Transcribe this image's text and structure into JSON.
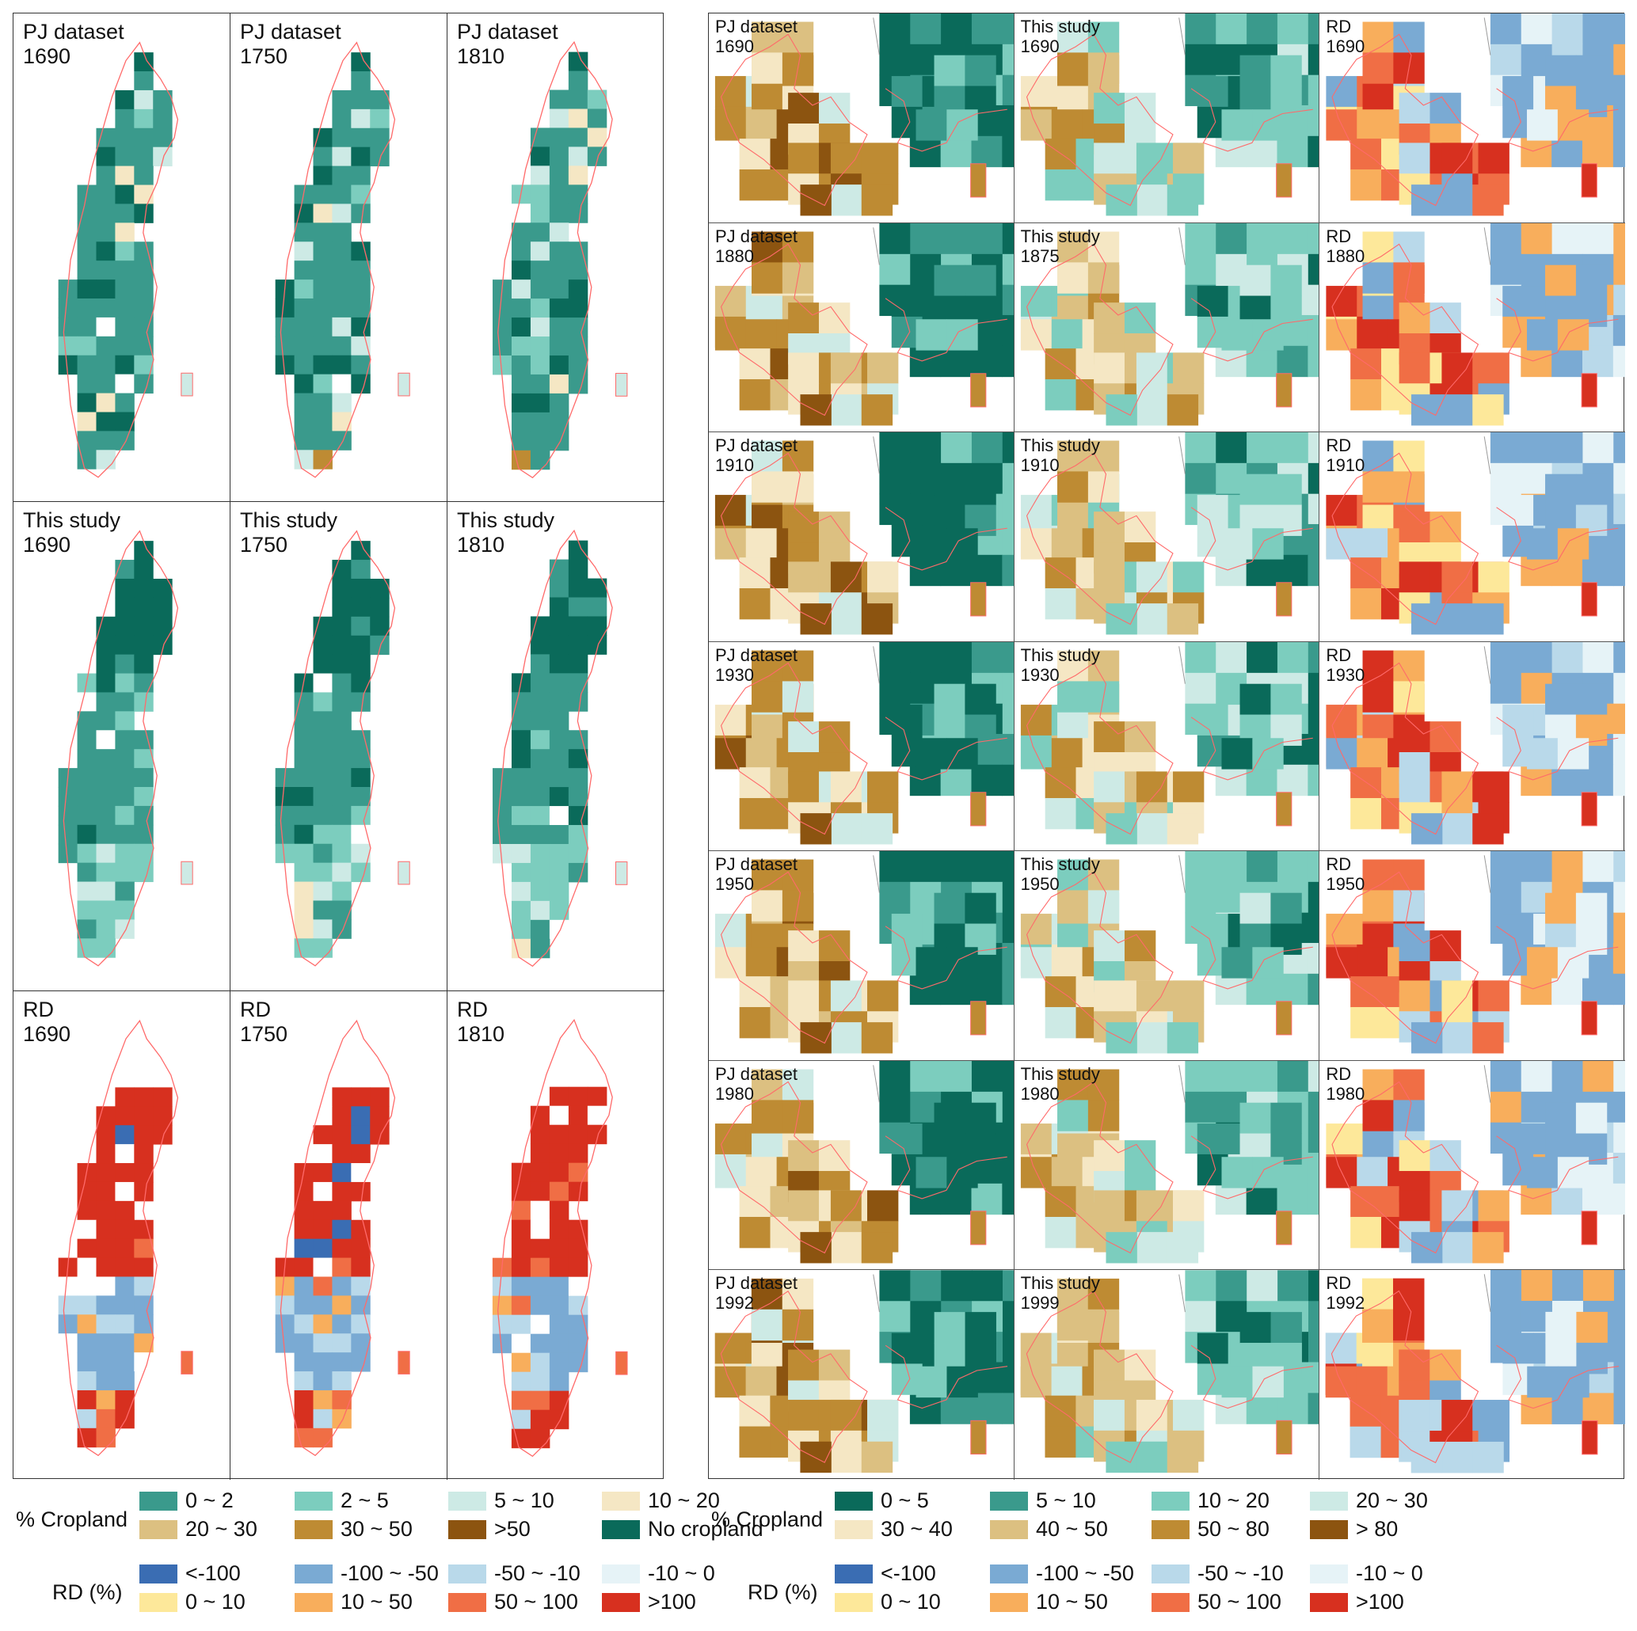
{
  "left_panels": {
    "rows": [
      {
        "dataset": "PJ dataset",
        "years": [
          "1690",
          "1750",
          "1810"
        ],
        "kind": "pj"
      },
      {
        "dataset": "This study",
        "years": [
          "1690",
          "1750",
          "1810"
        ],
        "kind": "ts"
      },
      {
        "dataset": "RD",
        "years": [
          "1690",
          "1750",
          "1810"
        ],
        "kind": "rd"
      }
    ]
  },
  "right_panels": {
    "rows": [
      {
        "cols": [
          {
            "dataset": "PJ dataset",
            "year": "1690"
          },
          {
            "dataset": "This study",
            "year": "1690"
          },
          {
            "dataset": "RD",
            "year": "1690"
          }
        ]
      },
      {
        "cols": [
          {
            "dataset": "PJ dataset",
            "year": "1880"
          },
          {
            "dataset": "This study",
            "year": "1875"
          },
          {
            "dataset": "RD",
            "year": "1880"
          }
        ]
      },
      {
        "cols": [
          {
            "dataset": "PJ dataset",
            "year": "1910"
          },
          {
            "dataset": "This study",
            "year": "1910"
          },
          {
            "dataset": "RD",
            "year": "1910"
          }
        ]
      },
      {
        "cols": [
          {
            "dataset": "PJ dataset",
            "year": "1930"
          },
          {
            "dataset": "This study",
            "year": "1930"
          },
          {
            "dataset": "RD",
            "year": "1930"
          }
        ]
      },
      {
        "cols": [
          {
            "dataset": "PJ dataset",
            "year": "1950"
          },
          {
            "dataset": "This study",
            "year": "1950"
          },
          {
            "dataset": "RD",
            "year": "1950"
          }
        ]
      },
      {
        "cols": [
          {
            "dataset": "PJ dataset",
            "year": "1980"
          },
          {
            "dataset": "This study",
            "year": "1980"
          },
          {
            "dataset": "RD",
            "year": "1980"
          }
        ]
      },
      {
        "cols": [
          {
            "dataset": "PJ dataset",
            "year": "1992"
          },
          {
            "dataset": "This study",
            "year": "1999"
          },
          {
            "dataset": "RD",
            "year": "1992"
          }
        ]
      }
    ]
  },
  "legend_left": {
    "cropland_title": "% Cropland",
    "cropland": [
      {
        "label": "0 ~ 2",
        "color": "#3a9a8c"
      },
      {
        "label": "2 ~ 5",
        "color": "#7ccdbe"
      },
      {
        "label": "5 ~ 10",
        "color": "#cdeae5"
      },
      {
        "label": "10 ~ 20",
        "color": "#f5e7c4"
      },
      {
        "label": "20 ~ 30",
        "color": "#dcc081"
      },
      {
        "label": "30 ~ 50",
        "color": "#be8b33"
      },
      {
        "label": ">50",
        "color": "#8c5410"
      },
      {
        "label": "No cropland",
        "color": "#0a6a5a"
      }
    ],
    "rd_title": "RD (%)",
    "rd": [
      {
        "label": "<-100",
        "color": "#3a6db3"
      },
      {
        "label": "-100 ~ -50",
        "color": "#7aaad3"
      },
      {
        "label": "-50 ~ -10",
        "color": "#b9d9ea"
      },
      {
        "label": "-10 ~ 0",
        "color": "#e6f3f7"
      },
      {
        "label": "0 ~ 10",
        "color": "#fde89a"
      },
      {
        "label": "10 ~ 50",
        "color": "#f8ae5c"
      },
      {
        "label": "50 ~ 100",
        "color": "#f06e45"
      },
      {
        "label": ">100",
        "color": "#d7301f"
      }
    ]
  },
  "legend_right": {
    "cropland_title": "% Cropland",
    "cropland": [
      {
        "label": "0 ~ 5",
        "color": "#0a6a5a"
      },
      {
        "label": "5 ~ 10",
        "color": "#3a9a8c"
      },
      {
        "label": "10 ~ 20",
        "color": "#7ccdbe"
      },
      {
        "label": "20 ~ 30",
        "color": "#cdeae5"
      },
      {
        "label": "30 ~ 40",
        "color": "#f5e7c4"
      },
      {
        "label": "40 ~ 50",
        "color": "#dcc081"
      },
      {
        "label": "50 ~ 80",
        "color": "#be8b33"
      },
      {
        "label": "> 80",
        "color": "#8c5410"
      }
    ],
    "rd_title": "RD (%)",
    "rd": [
      {
        "label": "<-100",
        "color": "#3a6db3"
      },
      {
        "label": "-100 ~ -50",
        "color": "#7aaad3"
      },
      {
        "label": "-50 ~ -10",
        "color": "#b9d9ea"
      },
      {
        "label": "-10 ~ 0",
        "color": "#e6f3f7"
      },
      {
        "label": "0 ~ 10",
        "color": "#fde89a"
      },
      {
        "label": "10 ~ 50",
        "color": "#f8ae5c"
      },
      {
        "label": "50 ~ 100",
        "color": "#f06e45"
      },
      {
        "label": ">100",
        "color": "#d7301f"
      }
    ]
  }
}
